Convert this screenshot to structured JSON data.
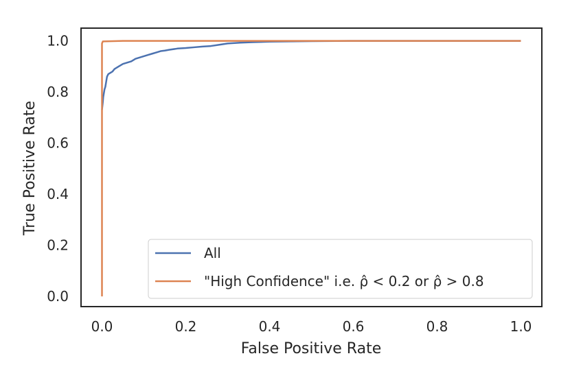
{
  "chart_data": {
    "type": "line",
    "title": "",
    "xlabel": "False Positive Rate",
    "ylabel": "True Positive Rate",
    "xlim": [
      -0.05,
      1.05
    ],
    "ylim": [
      -0.04,
      1.05
    ],
    "xticks": [
      0.0,
      0.2,
      0.4,
      0.6,
      0.8,
      1.0
    ],
    "xtick_labels": [
      "0.0",
      "0.2",
      "0.4",
      "0.6",
      "0.8",
      "1.0"
    ],
    "yticks": [
      0.0,
      0.2,
      0.4,
      0.6,
      0.8,
      1.0
    ],
    "ytick_labels": [
      "0.0",
      "0.2",
      "0.4",
      "0.6",
      "0.8",
      "1.0"
    ],
    "grid": false,
    "legend_position": "lower-right",
    "series": [
      {
        "name": "All",
        "legend_label": "All",
        "color": "#4c72b0",
        "x": [
          0.0,
          0.002,
          0.003,
          0.004,
          0.005,
          0.006,
          0.008,
          0.01,
          0.012,
          0.015,
          0.02,
          0.025,
          0.03,
          0.04,
          0.05,
          0.06,
          0.07,
          0.08,
          0.09,
          0.1,
          0.11,
          0.12,
          0.13,
          0.14,
          0.15,
          0.16,
          0.18,
          0.2,
          0.22,
          0.24,
          0.26,
          0.28,
          0.3,
          0.33,
          0.36,
          0.4,
          0.45,
          0.5,
          0.6,
          0.7,
          0.8,
          0.9,
          1.0
        ],
        "y": [
          0.73,
          0.76,
          0.78,
          0.79,
          0.8,
          0.81,
          0.82,
          0.84,
          0.86,
          0.87,
          0.875,
          0.88,
          0.89,
          0.9,
          0.91,
          0.915,
          0.92,
          0.93,
          0.935,
          0.94,
          0.945,
          0.95,
          0.955,
          0.96,
          0.962,
          0.965,
          0.97,
          0.972,
          0.975,
          0.978,
          0.98,
          0.985,
          0.99,
          0.993,
          0.995,
          0.997,
          0.998,
          0.999,
          1.0,
          1.0,
          1.0,
          1.0,
          1.0
        ]
      },
      {
        "name": "High Confidence",
        "legend_label": "\"High Confidence\" i.e. ρ̂ < 0.2 or ρ̂ > 0.8",
        "color": "#dd8452",
        "x": [
          0.0,
          0.0,
          0.002,
          0.05,
          1.0
        ],
        "y": [
          0.0,
          0.99,
          0.998,
          1.0,
          1.0
        ]
      }
    ]
  }
}
